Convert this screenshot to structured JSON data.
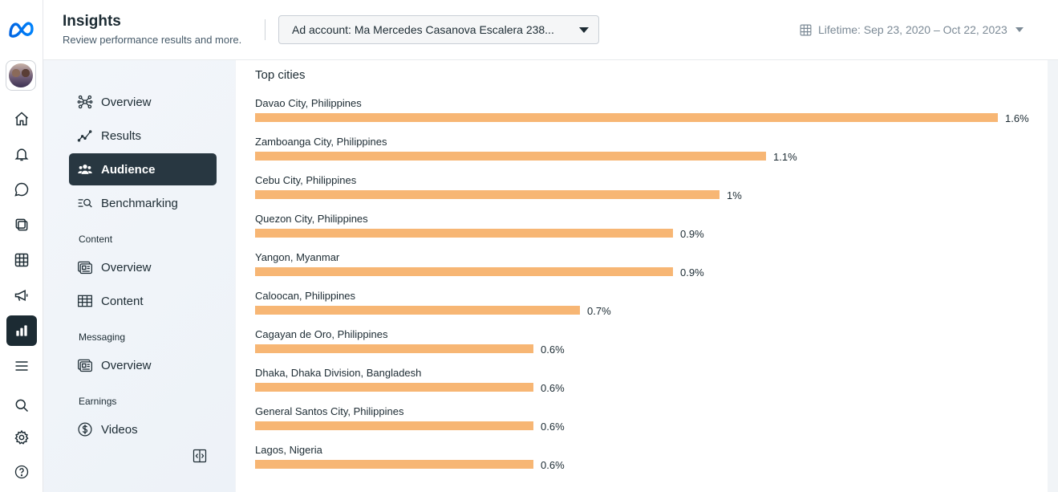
{
  "header": {
    "title": "Insights",
    "subtitle": "Review performance results and more.",
    "ad_account": "Ad account: Ma Mercedes Casanova Escalera 238...",
    "date_range": "Lifetime: Sep 23, 2020 – Oct 22, 2023"
  },
  "rail": {
    "icons": [
      "meta-logo",
      "avatar",
      "home-icon",
      "bell-icon",
      "chat-icon",
      "pages-icon",
      "table-icon",
      "megaphone-icon",
      "insights-icon",
      "menu-icon",
      "search-icon",
      "gear-icon",
      "help-icon"
    ]
  },
  "sidebar": {
    "items": [
      {
        "label": "Overview",
        "icon": "nodes-icon"
      },
      {
        "label": "Results",
        "icon": "trend-icon"
      },
      {
        "label": "Audience",
        "icon": "people-icon",
        "active": true
      },
      {
        "label": "Benchmarking",
        "icon": "benchmark-icon"
      }
    ],
    "content_section": "Content",
    "content_items": [
      {
        "label": "Overview",
        "icon": "content-overview-icon"
      },
      {
        "label": "Content",
        "icon": "content-table-icon"
      }
    ],
    "messaging_section": "Messaging",
    "messaging_items": [
      {
        "label": "Overview",
        "icon": "messaging-overview-icon"
      }
    ],
    "earnings_section": "Earnings",
    "earnings_items": [
      {
        "label": "Videos",
        "icon": "dollar-icon"
      }
    ]
  },
  "main": {
    "card_title": "Top cities"
  },
  "chart_data": {
    "type": "bar",
    "orientation": "horizontal",
    "title": "Top cities",
    "categories": [
      "Davao City, Philippines",
      "Zamboanga City, Philippines",
      "Cebu City, Philippines",
      "Quezon City, Philippines",
      "Yangon, Myanmar",
      "Caloocan, Philippines",
      "Cagayan de Oro, Philippines",
      "Dhaka, Dhaka Division, Bangladesh",
      "General Santos City, Philippines",
      "Lagos, Nigeria"
    ],
    "values": [
      1.6,
      1.1,
      1.0,
      0.9,
      0.9,
      0.7,
      0.6,
      0.6,
      0.6,
      0.6
    ],
    "value_labels": [
      "1.6%",
      "1.1%",
      "1%",
      "0.9%",
      "0.9%",
      "0.7%",
      "0.6%",
      "0.6%",
      "0.6%",
      "0.6%"
    ],
    "bar_color": "#f7b674",
    "xlim": [
      0,
      1.6
    ]
  }
}
